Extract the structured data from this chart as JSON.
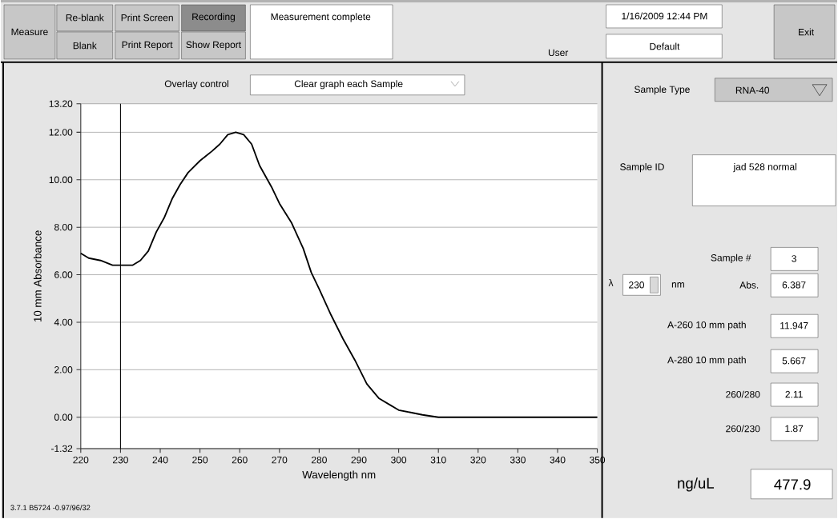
{
  "chart_data": {
    "type": "line",
    "xlabel": "Wavelength nm",
    "ylabel": "10 mm Absorbance",
    "series": [
      {
        "color": "#000000",
        "x": [
          220,
          222,
          225,
          228,
          230,
          233,
          235,
          237,
          239,
          241,
          243,
          245,
          247,
          250,
          253,
          255,
          257,
          259,
          261,
          263,
          265,
          268,
          270,
          273,
          276,
          278,
          280,
          283,
          286,
          289,
          292,
          295,
          298,
          300,
          303,
          306,
          310,
          320,
          350
        ],
        "values": [
          6.9,
          6.7,
          6.6,
          6.4,
          6.4,
          6.4,
          6.6,
          7.0,
          7.8,
          8.4,
          9.2,
          9.8,
          10.3,
          10.8,
          11.2,
          11.5,
          11.9,
          12.0,
          11.9,
          11.5,
          10.6,
          9.7,
          9.0,
          8.2,
          7.1,
          6.1,
          5.4,
          4.3,
          3.3,
          2.4,
          1.4,
          0.8,
          0.5,
          0.3,
          0.2,
          0.1,
          0.0,
          0.0,
          0.0
        ]
      }
    ],
    "xlim": [
      220,
      350
    ],
    "ylim": [
      -1.32,
      13.2
    ],
    "xticks": [
      220,
      230,
      240,
      250,
      260,
      270,
      280,
      290,
      300,
      310,
      320,
      330,
      340,
      350
    ],
    "yticks": [
      {
        "value": -1.32,
        "label": "-1.32"
      },
      {
        "value": 0,
        "label": "0.00"
      },
      {
        "value": 2,
        "label": "2.00"
      },
      {
        "value": 4,
        "label": "4.00"
      },
      {
        "value": 6,
        "label": "6.00"
      },
      {
        "value": 8,
        "label": "8.00"
      },
      {
        "value": 10,
        "label": "10.00"
      },
      {
        "value": 12,
        "label": "12.00"
      },
      {
        "value": 13.2,
        "label": "13.20"
      }
    ],
    "grid": "y",
    "marker": "none",
    "line_style": "solid",
    "ref_lines": [
      {
        "axis": "x",
        "value": 230,
        "color": "#000000"
      }
    ],
    "annotations": [
      "Measure",
      "Re-blank",
      "Blank",
      "Print Screen",
      "Print Report",
      "Recording",
      "Show Report",
      "Measurement complete",
      "1/16/2009  12:44 PM",
      "User",
      "Default",
      "Exit",
      "Overlay control",
      "Clear graph each Sample",
      "Sample Type",
      "RNA-40",
      "Sample ID",
      "jad 528 normal",
      "Sample #",
      "3",
      "λ",
      "230",
      "nm",
      "Abs.",
      "6.387",
      "A-260 10 mm path",
      "11.947",
      "A-280 10 mm path",
      "5.667",
      "260/280",
      "2.11",
      "260/230",
      "1.87",
      "ng/uL",
      "477.9",
      "3.7.1 B5724 -0.97/96/32"
    ]
  }
}
